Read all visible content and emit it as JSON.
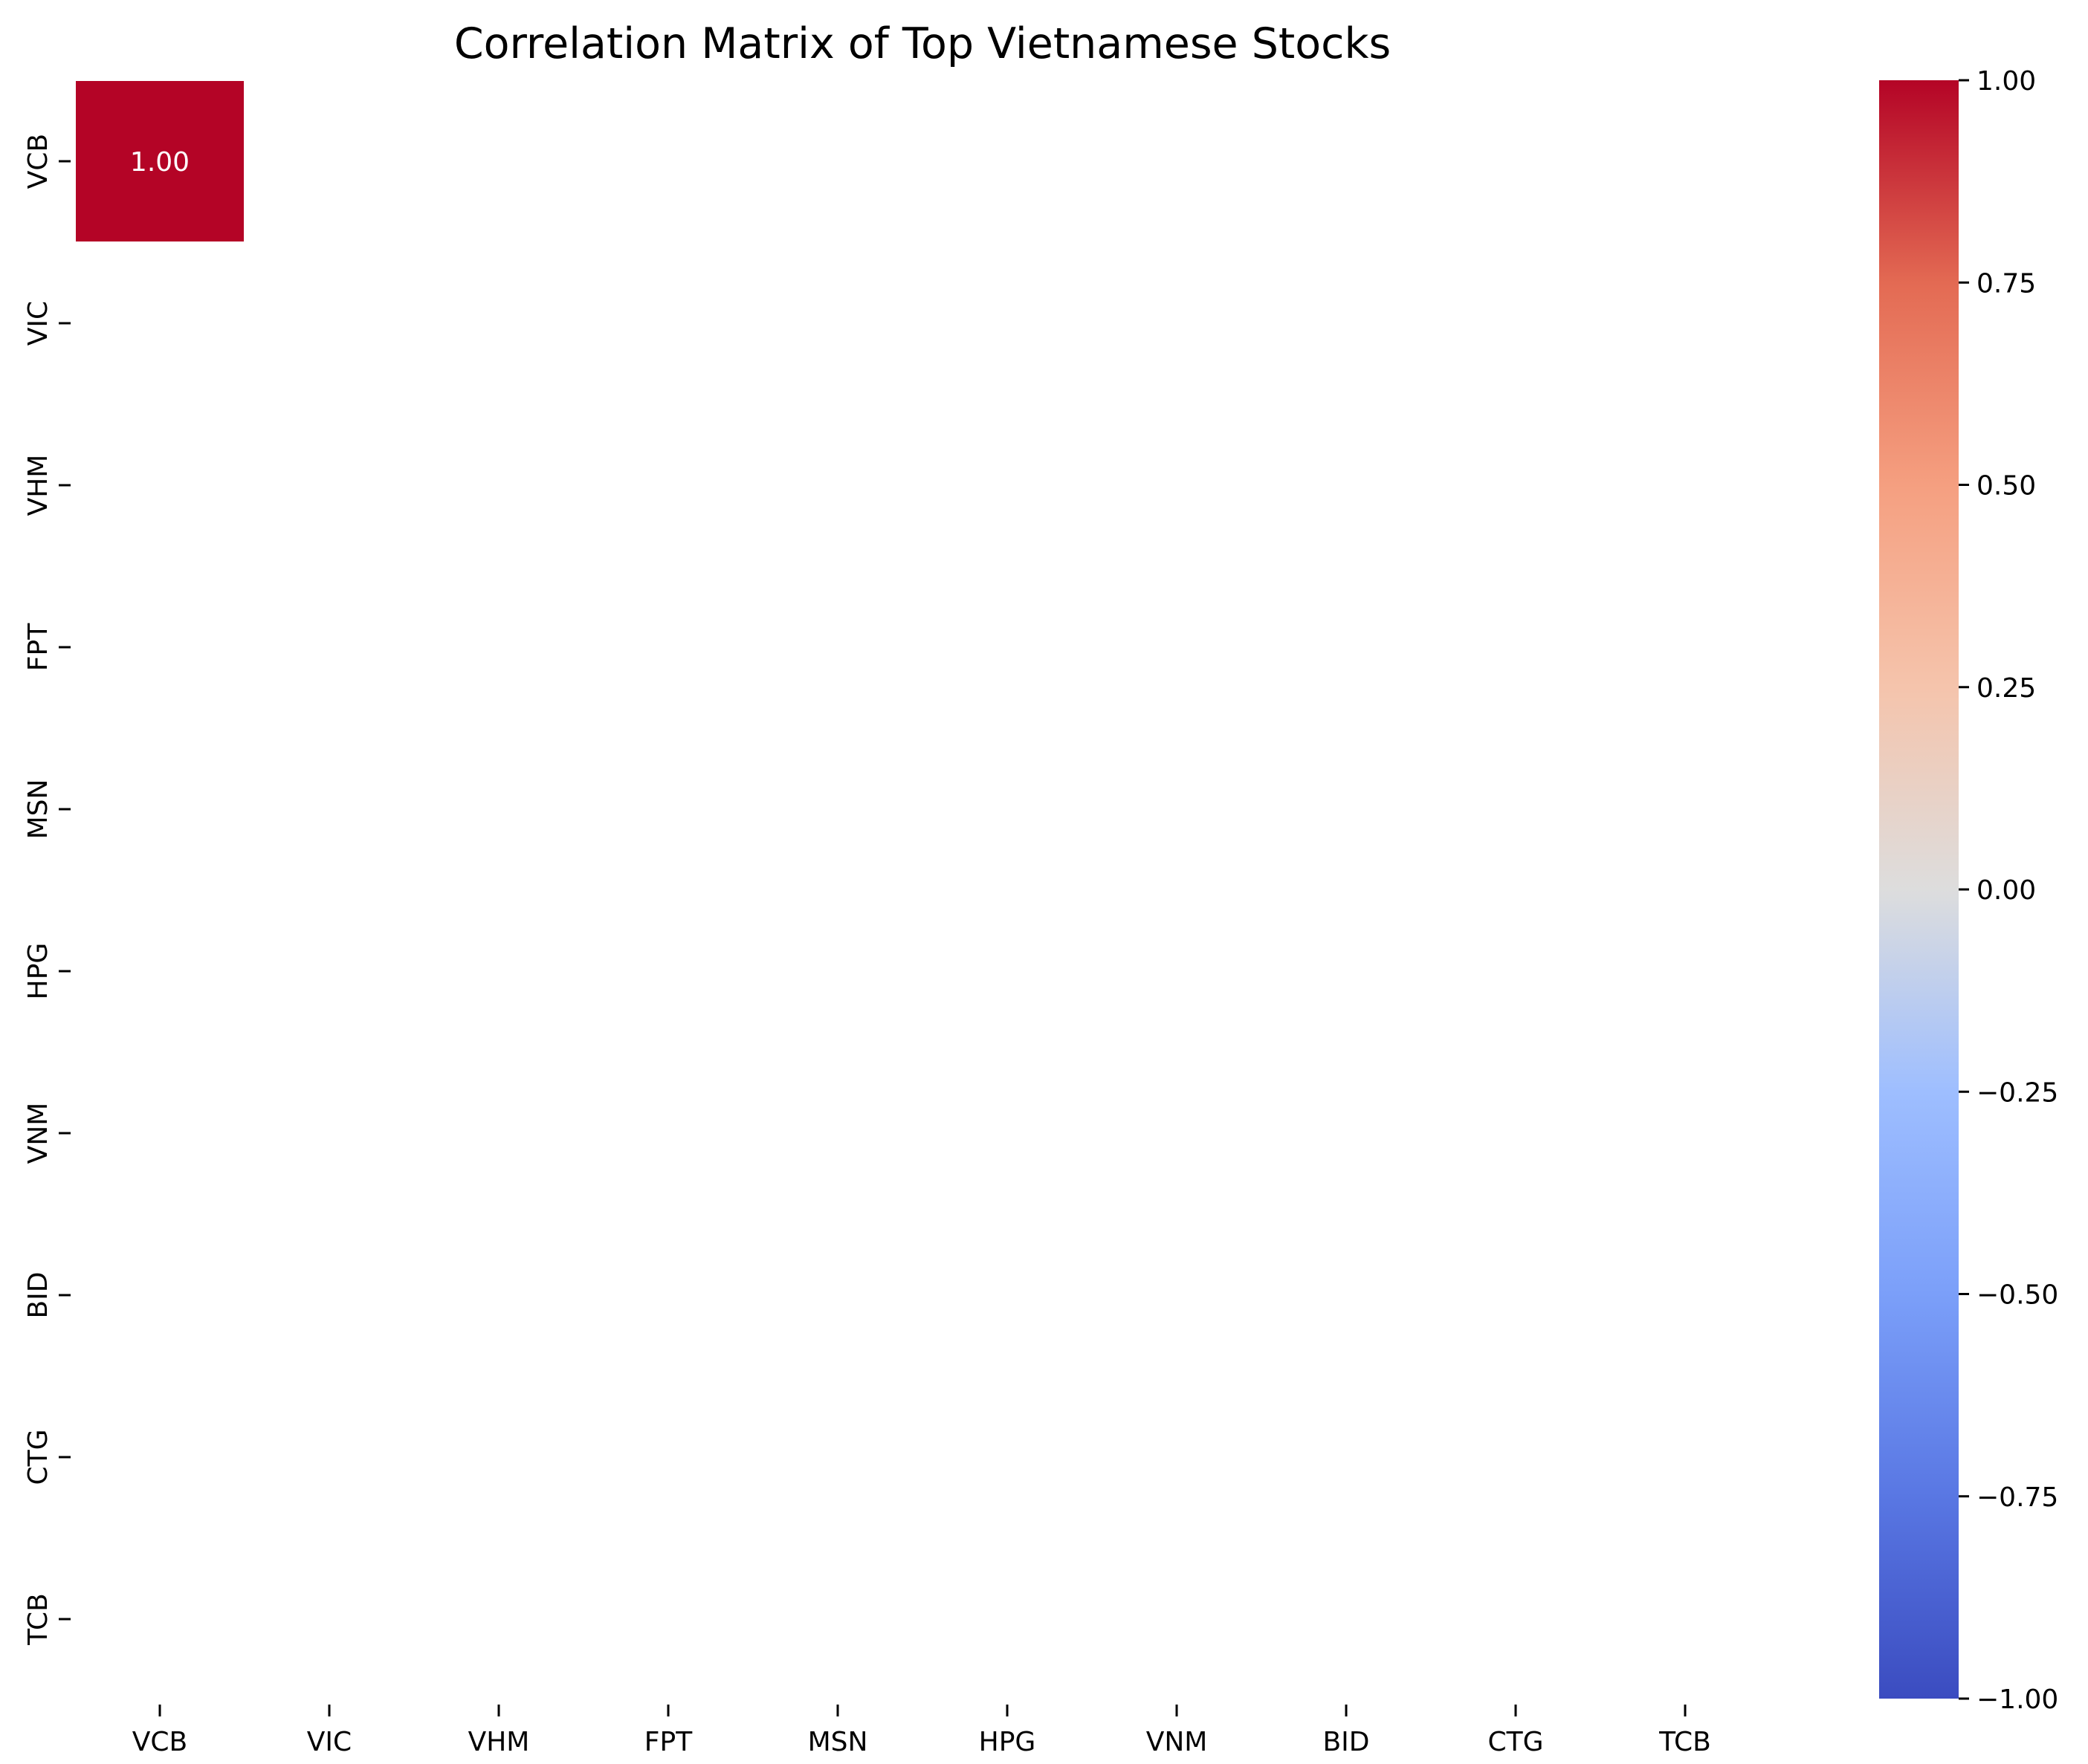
{
  "chart_data": {
    "type": "heatmap",
    "title": "Correlation Matrix of Top Vietnamese Stocks",
    "xlabel": "",
    "ylabel": "",
    "x_categories": [
      "VCB",
      "VIC",
      "VHM",
      "FPT",
      "MSN",
      "HPG",
      "VNM",
      "BID",
      "CTG",
      "TCB"
    ],
    "y_categories": [
      "VCB",
      "VIC",
      "VHM",
      "FPT",
      "MSN",
      "HPG",
      "VNM",
      "BID",
      "CTG",
      "TCB"
    ],
    "cells": [
      {
        "row": "VCB",
        "col": "VCB",
        "value": 1.0,
        "label": "1.00"
      }
    ],
    "colormap": "coolwarm",
    "vmin": -1.0,
    "vmax": 1.0,
    "colorbar_ticks": [
      "1.00",
      "0.75",
      "0.50",
      "0.25",
      "0.00",
      "−0.25",
      "−0.50",
      "−0.75",
      "−1.00"
    ],
    "colorbar_tick_values": [
      1.0,
      0.75,
      0.5,
      0.25,
      0.0,
      -0.25,
      -0.5,
      -0.75,
      -1.0
    ],
    "colors": {
      "high": "#b40426",
      "mid": "#dddddd",
      "low": "#3b4cc0"
    },
    "legend": "colorbar-right"
  }
}
